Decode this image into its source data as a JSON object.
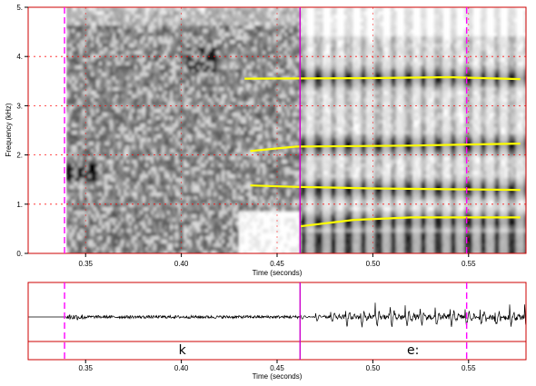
{
  "chart_data": {
    "type": "spectrogram",
    "x_range": [
      0.32,
      0.58
    ],
    "x_ticks": [
      0.35,
      0.4,
      0.45,
      0.5,
      0.55
    ],
    "x_tick_labels": [
      "0.35",
      "0.40",
      "0.45",
      "0.50",
      "0.55"
    ],
    "xlabel": "Time (seconds)",
    "spectrogram": {
      "ylabel": "Frequency (kHz)",
      "y_range": [
        0,
        5
      ],
      "y_ticks": [
        0,
        1,
        2,
        3,
        4,
        5
      ],
      "y_tick_labels": [
        "0.",
        "1.",
        "2.",
        "3.",
        "4.",
        "5."
      ],
      "grid": "red dotted at integer kHz",
      "formant_color": "#ffff00",
      "formants": [
        {
          "points": [
            [
              0.433,
              3.55
            ],
            [
              0.5,
              3.56
            ],
            [
              0.54,
              3.58
            ],
            [
              0.577,
              3.54
            ]
          ]
        },
        {
          "points": [
            [
              0.436,
              2.08
            ],
            [
              0.46,
              2.17
            ],
            [
              0.52,
              2.19
            ],
            [
              0.577,
              2.23
            ]
          ]
        },
        {
          "points": [
            [
              0.436,
              1.38
            ],
            [
              0.461,
              1.35
            ],
            [
              0.5,
              1.32
            ],
            [
              0.577,
              1.29
            ]
          ]
        },
        {
          "points": [
            [
              0.462,
              0.55
            ],
            [
              0.49,
              0.68
            ],
            [
              0.52,
              0.73
            ],
            [
              0.577,
              0.73
            ]
          ]
        }
      ]
    },
    "waveform": {
      "onset": 0.34,
      "voicing_onset": 0.462,
      "pulse_period": 0.0078
    },
    "boundaries": [
      {
        "time": 0.339,
        "style": "dashed",
        "color": "#ff00ff"
      },
      {
        "time": 0.462,
        "style": "solid",
        "color": "#cc00cc"
      },
      {
        "time": 0.549,
        "style": "dashed",
        "color": "#ff00ff"
      }
    ],
    "segments": [
      {
        "label": "k",
        "start": 0.339,
        "end": 0.462
      },
      {
        "label": "e:",
        "start": 0.462,
        "end": 0.58
      }
    ]
  }
}
